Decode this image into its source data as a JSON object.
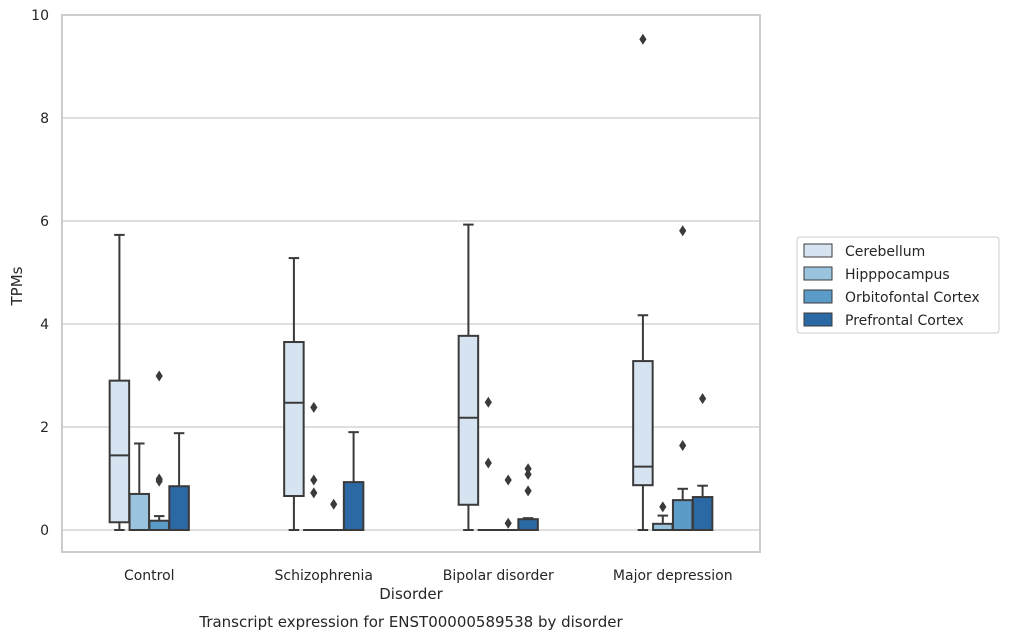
{
  "chart_data": {
    "type": "box",
    "caption": "Transcript expression for ENST00000589538 by disorder",
    "xlabel": "Disorder",
    "ylabel": "TPMs",
    "ylim": [
      -0.45,
      10
    ],
    "yticks": [
      0,
      2,
      4,
      6,
      8,
      10
    ],
    "grid": true,
    "legend_position": "right",
    "categories": [
      "Control",
      "Schizophrenia",
      "Bipolar disorder",
      "Major depression"
    ],
    "series": [
      {
        "name": "Cerebellum",
        "color": "#d6e4f2",
        "boxes": [
          {
            "whisker_low": 0.0,
            "q1": 0.15,
            "median": 1.45,
            "q3": 2.9,
            "whisker_high": 5.73,
            "outliers": []
          },
          {
            "whisker_low": 0.0,
            "q1": 0.66,
            "median": 2.47,
            "q3": 3.65,
            "whisker_high": 5.28,
            "outliers": []
          },
          {
            "whisker_low": 0.0,
            "q1": 0.49,
            "median": 2.18,
            "q3": 3.77,
            "whisker_high": 5.93,
            "outliers": []
          },
          {
            "whisker_low": 0.0,
            "q1": 0.87,
            "median": 1.23,
            "q3": 3.28,
            "whisker_high": 4.17,
            "outliers": [
              9.53
            ]
          }
        ]
      },
      {
        "name": "Hipppocampus",
        "color": "#9ac4dd",
        "boxes": [
          {
            "whisker_low": 0.0,
            "q1": 0.0,
            "median": 0.0,
            "q3": 0.7,
            "whisker_high": 1.68,
            "outliers": []
          },
          {
            "whisker_low": 0.0,
            "q1": 0.0,
            "median": 0.0,
            "q3": 0.0,
            "whisker_high": 0.0,
            "outliers": [
              0.72,
              0.97,
              2.38
            ]
          },
          {
            "whisker_low": 0.0,
            "q1": 0.0,
            "median": 0.0,
            "q3": 0.0,
            "whisker_high": 0.0,
            "outliers": [
              1.3,
              2.48
            ]
          },
          {
            "whisker_low": 0.0,
            "q1": 0.0,
            "median": 0.0,
            "q3": 0.12,
            "whisker_high": 0.28,
            "outliers": [
              0.45
            ]
          }
        ]
      },
      {
        "name": "Orbitofontal Cortex",
        "color": "#5b9bc8",
        "boxes": [
          {
            "whisker_low": 0.0,
            "q1": 0.0,
            "median": 0.0,
            "q3": 0.18,
            "whisker_high": 0.27,
            "outliers": [
              0.95,
              0.99,
              2.99
            ]
          },
          {
            "whisker_low": 0.0,
            "q1": 0.0,
            "median": 0.0,
            "q3": 0.0,
            "whisker_high": 0.0,
            "outliers": [
              0.5
            ]
          },
          {
            "whisker_low": 0.0,
            "q1": 0.0,
            "median": 0.0,
            "q3": 0.0,
            "whisker_high": 0.0,
            "outliers": [
              0.13,
              0.97
            ]
          },
          {
            "whisker_low": 0.0,
            "q1": 0.0,
            "median": 0.0,
            "q3": 0.58,
            "whisker_high": 0.8,
            "outliers": [
              1.64,
              5.81
            ]
          }
        ]
      },
      {
        "name": "Prefrontal Cortex",
        "color": "#2b69a4",
        "boxes": [
          {
            "whisker_low": 0.0,
            "q1": 0.0,
            "median": 0.0,
            "q3": 0.85,
            "whisker_high": 1.88,
            "outliers": []
          },
          {
            "whisker_low": 0.0,
            "q1": 0.0,
            "median": 0.0,
            "q3": 0.93,
            "whisker_high": 1.9,
            "outliers": []
          },
          {
            "whisker_low": 0.0,
            "q1": 0.0,
            "median": 0.0,
            "q3": 0.21,
            "whisker_high": 0.23,
            "outliers": [
              0.76,
              1.08,
              1.19
            ]
          },
          {
            "whisker_low": 0.0,
            "q1": 0.0,
            "median": 0.0,
            "q3": 0.64,
            "whisker_high": 0.86,
            "outliers": [
              2.55
            ]
          }
        ]
      }
    ]
  }
}
